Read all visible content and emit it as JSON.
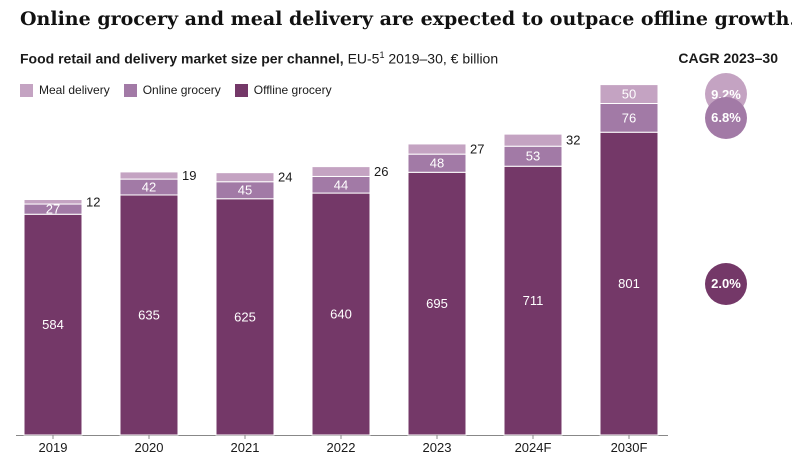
{
  "headline": "Online grocery and meal delivery are expected to outpace offline growth.",
  "subtitle_bold": "Food retail and delivery market size per channel,",
  "subtitle_rest_a": "EU-5",
  "subtitle_sup": "1",
  "subtitle_rest_b": "2019–30, € billion",
  "cagr_title": "CAGR 2023–30",
  "colors": {
    "meal": "#c4a3c2",
    "online": "#a27aa6",
    "offline": "#743868"
  },
  "chart_data": {
    "type": "bar",
    "stacked": true,
    "categories": [
      "2019",
      "2020",
      "2021",
      "2022",
      "2023",
      "2024F",
      "2030F"
    ],
    "series": [
      {
        "name": "Offline grocery",
        "values": [
          584,
          635,
          625,
          640,
          695,
          711,
          801
        ]
      },
      {
        "name": "Online grocery",
        "values": [
          27,
          42,
          45,
          44,
          48,
          53,
          76
        ]
      },
      {
        "name": "Meal delivery",
        "values": [
          12,
          19,
          24,
          26,
          27,
          32,
          50
        ]
      }
    ],
    "legend": [
      "Meal delivery",
      "Online grocery",
      "Offline grocery"
    ],
    "cagr": [
      {
        "series": "Meal delivery",
        "value": "9.2%"
      },
      {
        "series": "Online grocery",
        "value": "6.8%"
      },
      {
        "series": "Offline grocery",
        "value": "2.0%"
      }
    ]
  }
}
